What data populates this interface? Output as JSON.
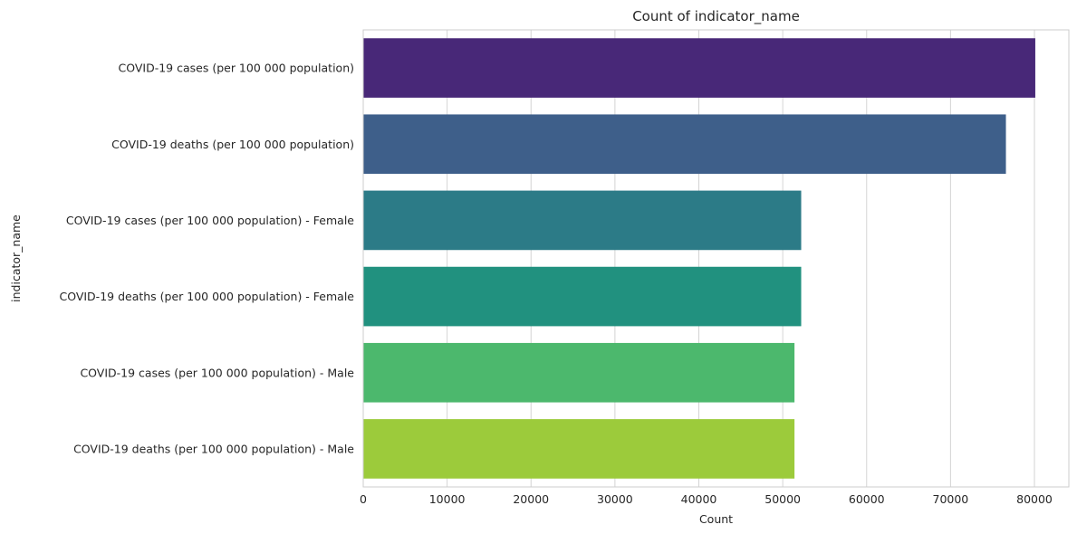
{
  "chart_data": {
    "type": "bar",
    "orientation": "horizontal",
    "title": "Count of indicator_name",
    "xlabel": "Count",
    "ylabel": "indicator_name",
    "categories": [
      "COVID-19 cases (per 100 000 population)",
      "COVID-19 deaths (per 100 000 population)",
      "COVID-19 cases (per 100 000 population) - Female",
      "COVID-19 deaths (per 100 000 population) - Female",
      "COVID-19 cases (per 100 000 population) - Male",
      "COVID-19 deaths (per 100 000 population) - Male"
    ],
    "values": [
      80100,
      76600,
      52200,
      52200,
      51400,
      51400
    ],
    "colors": [
      "#482878",
      "#3e5f8a",
      "#2c7b87",
      "#21917f",
      "#4cb86d",
      "#9ccb3b"
    ],
    "xlim": [
      0,
      84100
    ],
    "xticks": [
      0,
      10000,
      20000,
      30000,
      40000,
      50000,
      60000,
      70000,
      80000
    ],
    "grid": true,
    "legend": "none"
  }
}
